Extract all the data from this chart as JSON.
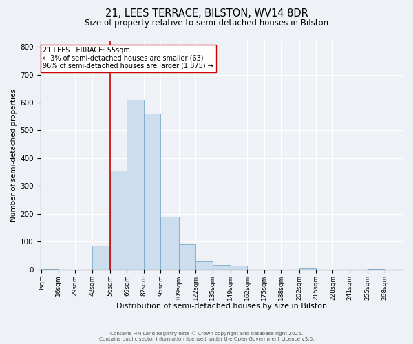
{
  "title": "21, LEES TERRACE, BILSTON, WV14 8DR",
  "subtitle": "Size of property relative to semi-detached houses in Bilston",
  "xlabel": "Distribution of semi-detached houses by size in Bilston",
  "ylabel": "Number of semi-detached properties",
  "footer_lines": [
    "Contains HM Land Registry data © Crown copyright and database right 2025.",
    "Contains public sector information licensed under the Open Government Licence v3.0."
  ],
  "bin_labels": [
    "3sqm",
    "16sqm",
    "29sqm",
    "42sqm",
    "56sqm",
    "69sqm",
    "82sqm",
    "95sqm",
    "109sqm",
    "122sqm",
    "135sqm",
    "149sqm",
    "162sqm",
    "175sqm",
    "188sqm",
    "202sqm",
    "215sqm",
    "228sqm",
    "241sqm",
    "255sqm",
    "268sqm"
  ],
  "bin_edges": [
    3,
    16,
    29,
    42,
    56,
    69,
    82,
    95,
    109,
    122,
    135,
    149,
    162,
    175,
    188,
    202,
    215,
    228,
    241,
    255,
    268,
    281
  ],
  "bar_heights": [
    2,
    0,
    0,
    85,
    355,
    610,
    560,
    190,
    92,
    30,
    18,
    15,
    0,
    0,
    0,
    5,
    0,
    0,
    0,
    3,
    0
  ],
  "bar_color": "#ccdded",
  "bar_edge_color": "#7aaac8",
  "ylim": [
    0,
    820
  ],
  "yticks": [
    0,
    100,
    200,
    300,
    400,
    500,
    600,
    700,
    800
  ],
  "property_line_x": 56,
  "property_line_color": "#cc0000",
  "annotation_text": "21 LEES TERRACE: 55sqm\n← 3% of semi-detached houses are smaller (63)\n96% of semi-detached houses are larger (1,875) →",
  "annotation_box_color": "#ffffff",
  "annotation_box_edge_color": "#cc0000",
  "background_color": "#eef2f7",
  "plot_background_color": "#eef2f7",
  "grid_color": "#ffffff",
  "title_fontsize": 10.5,
  "subtitle_fontsize": 8.5,
  "ylabel_rotation": 90
}
